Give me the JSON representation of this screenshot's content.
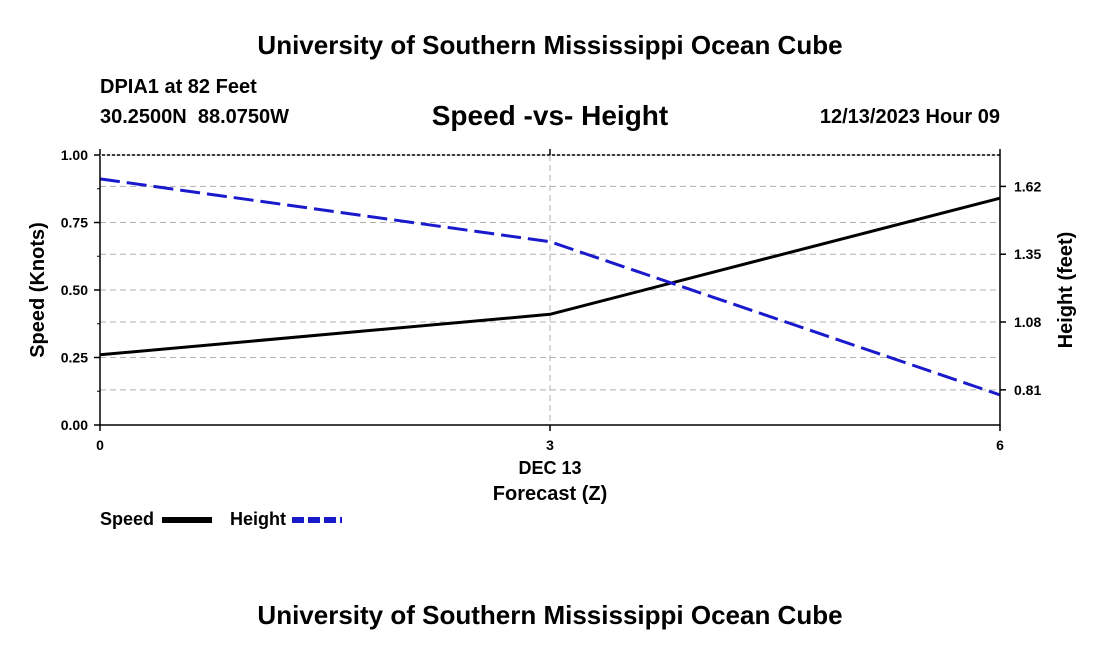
{
  "header": {
    "title": "University of Southern Mississippi Ocean Cube",
    "station": "DPIA1 at 82 Feet",
    "coords": "30.2500N  88.0750W",
    "subtitle": "Speed -vs- Height",
    "datetime": "12/13/2023 Hour 09"
  },
  "footer": {
    "title": "University of Southern Mississippi Ocean Cube"
  },
  "chart_data": {
    "type": "line",
    "title": "Speed -vs- Height",
    "xlabel": "Forecast (Z)",
    "xlabel_date": "DEC 13",
    "ylabel_left": "Speed (Knots)",
    "ylabel_right": "Height (feet)",
    "x": [
      0,
      3,
      6
    ],
    "xlim": [
      0,
      6
    ],
    "x_ticks": [
      "0",
      "3",
      "6"
    ],
    "ylim_left": [
      0,
      1
    ],
    "yticks_left": [
      "0.00",
      "0.25",
      "0.50",
      "0.75",
      "1.00"
    ],
    "ylim_right": [
      0.67,
      1.745
    ],
    "yticks_right": [
      {
        "value": 0.81,
        "label": "0.81"
      },
      {
        "value": 1.08,
        "label": "1.08"
      },
      {
        "value": 1.35,
        "label": "1.35"
      },
      {
        "value": 1.62,
        "label": "1.62"
      }
    ],
    "grid": true,
    "series": [
      {
        "name": "Speed",
        "axis": "left",
        "color": "#000000",
        "style": "solid",
        "values": [
          0.26,
          0.41,
          0.84
        ]
      },
      {
        "name": "Height",
        "axis": "right",
        "color": "#1a1acc",
        "style": "dashed",
        "values": [
          1.65,
          1.4,
          0.79
        ]
      }
    ]
  }
}
